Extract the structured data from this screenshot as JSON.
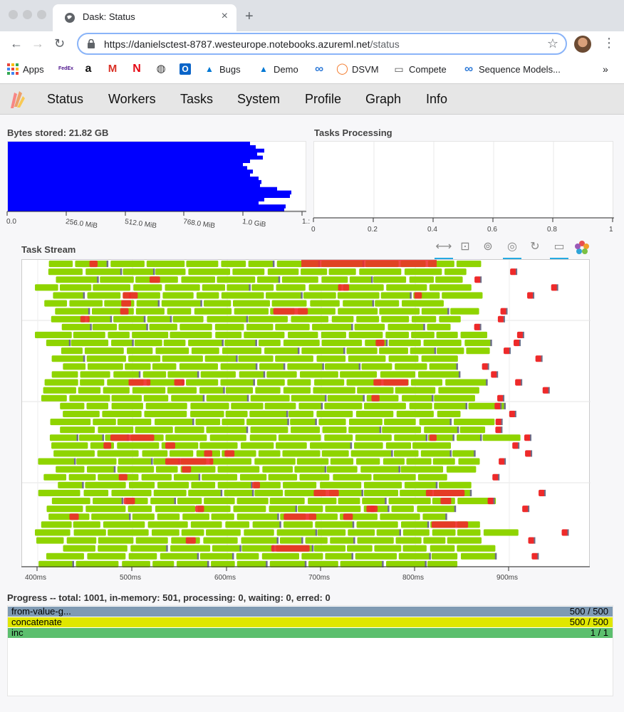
{
  "browser": {
    "tab_title": "Dask: Status",
    "tab_close": "×",
    "new_tab": "+",
    "url_main": "https://danielsctest-8787.westeurope.notebooks.azureml.net",
    "url_path": "/status",
    "bookmarks": [
      {
        "label": "Apps",
        "icon": "apps-grid-icon"
      },
      {
        "label": "",
        "icon": "fedex-icon",
        "glyph": "FedEx"
      },
      {
        "label": "",
        "icon": "amazon-icon",
        "glyph": "a"
      },
      {
        "label": "",
        "icon": "gmail-icon",
        "glyph": "M"
      },
      {
        "label": "",
        "icon": "netflix-icon",
        "glyph": "N"
      },
      {
        "label": "",
        "icon": "globe-icon",
        "glyph": "◍"
      },
      {
        "label": "",
        "icon": "outlook-icon",
        "glyph": "O"
      },
      {
        "label": "Bugs",
        "icon": "azure-devops-icon",
        "glyph": "▲"
      },
      {
        "label": "Demo",
        "icon": "azure-devops-icon",
        "glyph": "▲"
      },
      {
        "label": "",
        "icon": "infinity-icon",
        "glyph": "∞"
      },
      {
        "label": "DSVM",
        "icon": "jupyter-icon",
        "glyph": "◯"
      },
      {
        "label": "Compete",
        "icon": "folder-icon",
        "glyph": "▭"
      },
      {
        "label": "Sequence Models...",
        "icon": "infinity-icon",
        "glyph": "∞"
      }
    ],
    "more_bookmarks": "»"
  },
  "nav": {
    "items": [
      "Status",
      "Workers",
      "Tasks",
      "System",
      "Profile",
      "Graph",
      "Info"
    ]
  },
  "bytes_stored": {
    "title": "Bytes stored: 21.82 GB",
    "tick_labels": [
      "0.0",
      "256.0 MiB",
      "512.0 MiB",
      "768.0 MiB",
      "1.0 GiB",
      "1.:"
    ],
    "bar_color": "#0000ff"
  },
  "tasks_processing": {
    "title": "Tasks Processing",
    "tick_labels": [
      "0",
      "0.2",
      "0.4",
      "0.6",
      "0.8",
      "1"
    ]
  },
  "task_stream": {
    "title": "Task Stream",
    "tick_labels": [
      "400ms",
      "500ms",
      "600ms",
      "700ms",
      "800ms",
      "900ms"
    ],
    "colors": {
      "green": "#8fd400",
      "red": "#ee2a2a",
      "grey": "#6c6f8a"
    },
    "tools": [
      "pan-icon",
      "box-zoom-icon",
      "wheel-zoom-icon",
      "zoom-lasso-icon",
      "reset-icon",
      "hover-icon",
      "bokeh-logo-icon"
    ]
  },
  "progress": {
    "title": "Progress -- total: 1001, in-memory: 501, processing: 0, waiting: 0, erred: 0",
    "rows": [
      {
        "name": "from-value-g...",
        "count": "500 / 500",
        "color": "#7f9ab3"
      },
      {
        "name": "concatenate",
        "count": "500 / 500",
        "color": "#e0e700"
      },
      {
        "name": "inc",
        "count": "1 / 1",
        "color": "#5cbf6e"
      }
    ]
  }
}
